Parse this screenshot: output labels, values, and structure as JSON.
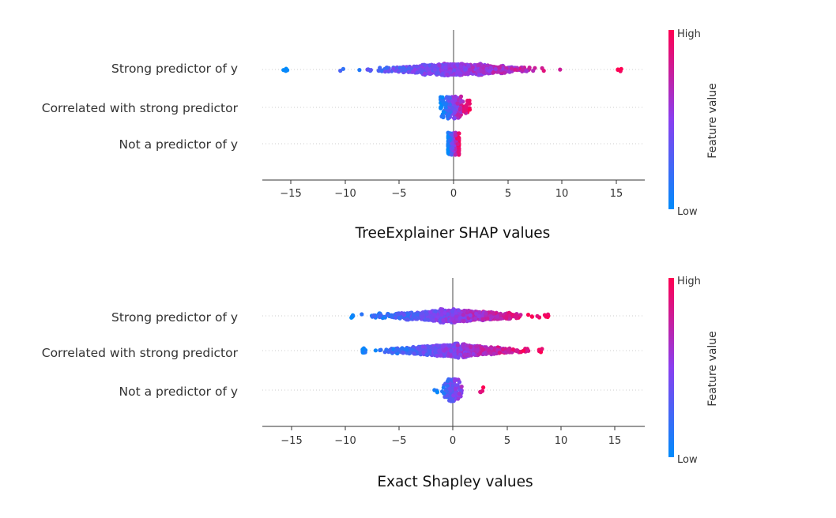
{
  "colors": {
    "low": "#008bfb",
    "mid": "#8a3ff0",
    "high": "#ff0052",
    "zero_line": "#999999",
    "axis": "#333333"
  },
  "chart_data": [
    {
      "type": "scatter",
      "subtype": "beeswarm",
      "title": "TreeExplainer SHAP values",
      "xlabel": "",
      "x_ticks": [
        -15,
        -10,
        -5,
        0,
        5,
        10,
        15
      ],
      "x_tick_labels": [
        "−15",
        "−10",
        "−5",
        "0",
        "5",
        "10",
        "15"
      ],
      "xlim": [
        -17.5,
        17.5
      ],
      "colorbar": {
        "label": "Feature value",
        "high": "High",
        "low": "Low"
      },
      "features": [
        {
          "name": "Strong predictor of y",
          "range": [
            -15.7,
            15.5
          ],
          "spread": 3.0
        },
        {
          "name": "Correlated with strong predictor",
          "range": [
            -1.2,
            1.5
          ],
          "spread": 0.6
        },
        {
          "name": "Not a predictor of y",
          "range": [
            -0.5,
            0.5
          ],
          "spread": 0.4
        }
      ]
    },
    {
      "type": "scatter",
      "subtype": "beeswarm",
      "title": "Exact Shapley values",
      "xlabel": "",
      "x_ticks": [
        -15,
        -10,
        -5,
        0,
        5,
        10,
        15
      ],
      "x_tick_labels": [
        "−15",
        "−10",
        "−5",
        "0",
        "5",
        "10",
        "15"
      ],
      "xlim": [
        -17.5,
        17.5
      ],
      "colorbar": {
        "label": "Feature value",
        "high": "High",
        "low": "Low"
      },
      "features": [
        {
          "name": "Strong predictor of y",
          "range": [
            -9.4,
            8.9
          ],
          "spread": 2.8
        },
        {
          "name": "Correlated with strong predictor",
          "range": [
            -8.4,
            8.3
          ],
          "spread": 2.8
        },
        {
          "name": "Not a predictor of y",
          "range": [
            -1.8,
            2.9
          ],
          "spread": 0.35
        }
      ]
    }
  ]
}
